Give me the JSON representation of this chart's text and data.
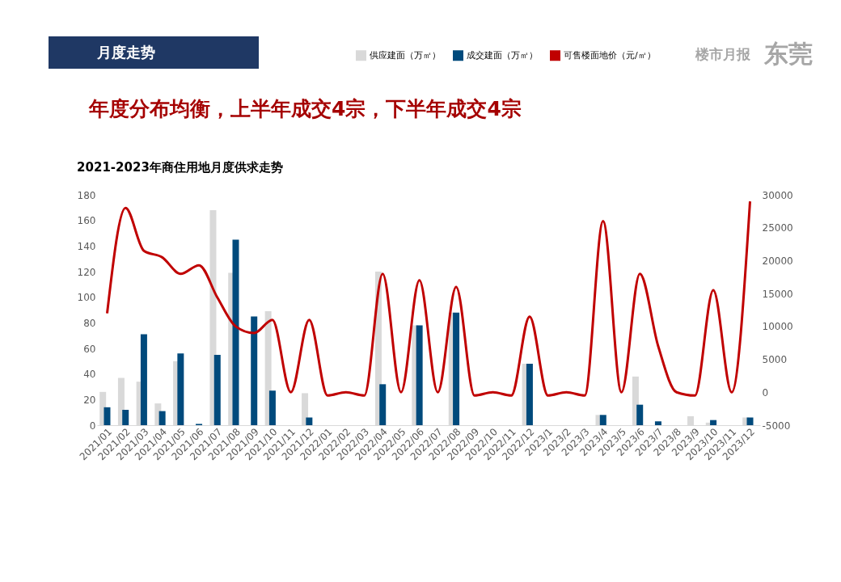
{
  "chart_data": {
    "type": "bar",
    "title": "年度分布均衡，上半年成交4宗，下半年成交4宗",
    "subtitle": "2021-2023年商住用地月度供求走势",
    "annotations": [
      "月度走势",
      "楼市月报",
      "东莞"
    ],
    "categories": [
      "2021/01",
      "2021/02",
      "2021/03",
      "2021/04",
      "2021/05",
      "2021/06",
      "2021/07",
      "2021/08",
      "2021/09",
      "2021/10",
      "2021/11",
      "2021/12",
      "2022/01",
      "2022/02",
      "2022/03",
      "2022/04",
      "2022/05",
      "2022/06",
      "2022/07",
      "2022/08",
      "2022/09",
      "2022/10",
      "2022/11",
      "2022/12",
      "2023/1",
      "2023/2",
      "2023/3",
      "2023/4",
      "2023/5",
      "2023/6",
      "2023/7",
      "2023/8",
      "2023/9",
      "2023/10",
      "2023/11",
      "2023/12"
    ],
    "series": [
      {
        "name": "供应建面（万㎡）",
        "color": "#d9d9d9",
        "values": [
          26,
          37,
          34,
          17,
          50,
          0,
          168,
          119,
          0,
          89,
          0,
          25,
          0,
          0,
          0,
          120,
          0,
          78,
          0,
          88,
          0,
          0,
          0,
          48,
          0,
          0,
          0,
          8,
          0,
          38,
          0,
          0,
          7,
          2,
          0,
          6
        ]
      },
      {
        "name": "成交建面（万㎡）",
        "color": "#004a7c",
        "values": [
          14,
          12,
          71,
          11,
          56,
          1,
          55,
          145,
          85,
          27,
          0,
          6,
          0,
          0,
          0,
          32,
          0,
          78,
          0,
          88,
          0,
          0,
          0,
          48,
          0,
          0,
          0,
          8,
          0,
          16,
          3,
          0,
          0,
          4,
          0,
          6
        ]
      },
      {
        "name": "可售楼面地价（元/㎡）",
        "type": "line",
        "axis": "y2",
        "color": "#c00000",
        "values": [
          12000,
          28000,
          21500,
          20500,
          18000,
          19300,
          14400,
          10000,
          9000,
          11000,
          0,
          11000,
          -500,
          0,
          -500,
          18000,
          0,
          17000,
          0,
          16000,
          -500,
          0,
          -500,
          11500,
          -500,
          0,
          -500,
          26000,
          0,
          18000,
          7000,
          0,
          -500,
          15500,
          0,
          29000
        ]
      }
    ],
    "ylim": [
      0,
      180
    ],
    "yticks": [
      0,
      20,
      40,
      60,
      80,
      100,
      120,
      140,
      160,
      180
    ],
    "y2lim": [
      -5000,
      30000
    ],
    "y2ticks": [
      -5000,
      0,
      5000,
      10000,
      15000,
      20000,
      25000,
      30000
    ],
    "grid": false,
    "legend": "top right",
    "marker": "none",
    "line_style": "solid"
  }
}
